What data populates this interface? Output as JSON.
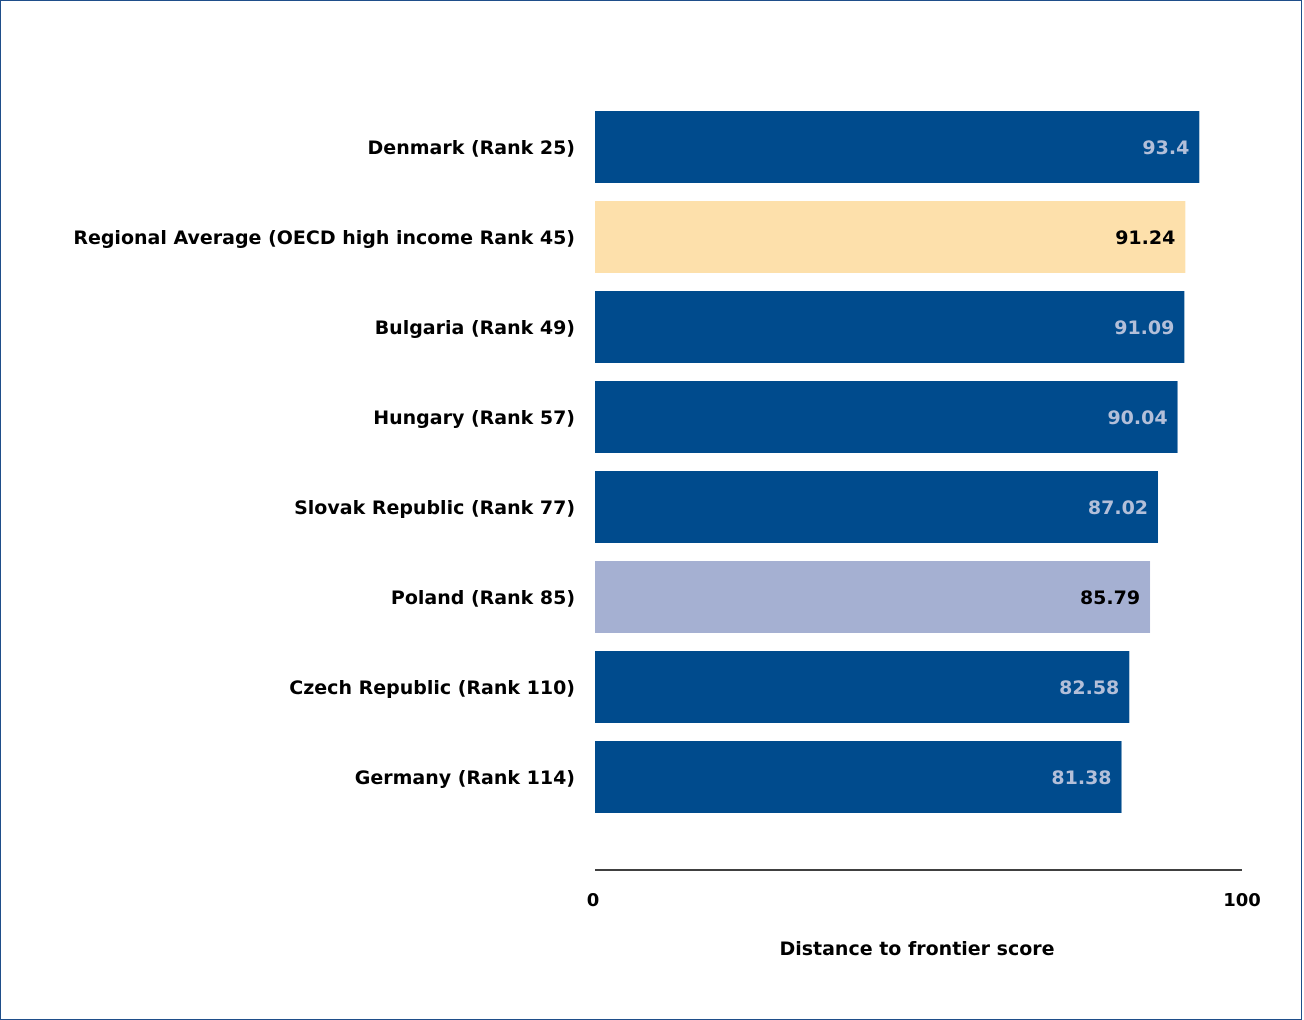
{
  "chart_data": {
    "type": "bar",
    "orientation": "horizontal",
    "categories": [
      "Denmark (Rank 25)",
      "Regional Average (OECD high income Rank 45)",
      "Bulgaria (Rank 49)",
      "Hungary (Rank 57)",
      "Slovak Republic (Rank 77)",
      "Poland (Rank 85)",
      "Czech Republic (Rank 110)",
      "Germany (Rank 114)"
    ],
    "values": [
      93.4,
      91.24,
      91.09,
      90.04,
      87.02,
      85.79,
      82.58,
      81.38
    ],
    "value_labels": [
      "93.4",
      "91.24",
      "91.09",
      "90.04",
      "87.02",
      "85.79",
      "82.58",
      "81.38"
    ],
    "bar_colors": [
      "#004b8d",
      "#fde0ab",
      "#004b8d",
      "#004b8d",
      "#004b8d",
      "#a5b0d2",
      "#004b8d",
      "#004b8d"
    ],
    "label_colors": [
      "#b3bfd9",
      "#000000",
      "#b3bfd9",
      "#b3bfd9",
      "#b3bfd9",
      "#000000",
      "#b3bfd9",
      "#b3bfd9"
    ],
    "xlim": [
      0,
      100
    ],
    "xticks": [
      "0",
      "100"
    ],
    "xlabel": "Distance to frontier score",
    "grid": false,
    "legend": "none"
  }
}
